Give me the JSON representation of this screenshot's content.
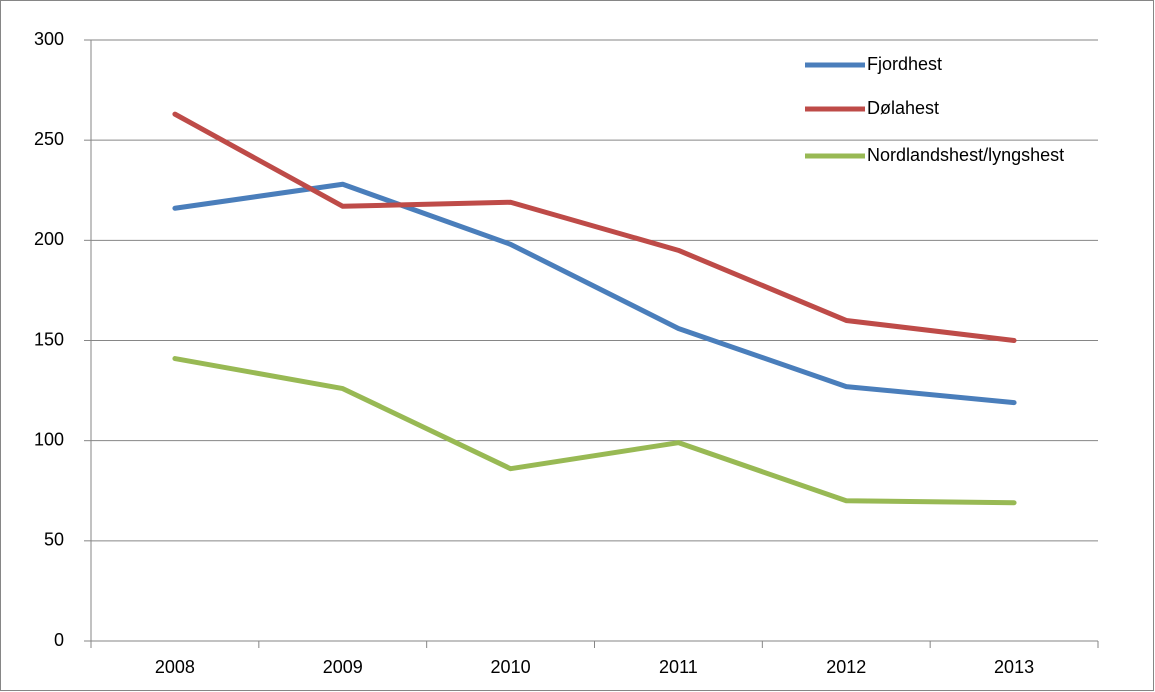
{
  "chart_data": {
    "type": "line",
    "categories": [
      "2008",
      "2009",
      "2010",
      "2011",
      "2012",
      "2013"
    ],
    "series": [
      {
        "name": "Fjordhest",
        "color": "#4a7ebb",
        "values": [
          216,
          228,
          198,
          156,
          127,
          119
        ]
      },
      {
        "name": "Dølahest",
        "color": "#be4b48",
        "values": [
          263,
          217,
          219,
          195,
          160,
          150
        ]
      },
      {
        "name": "Nordlandshest/lyngshest",
        "color": "#98b954",
        "values": [
          141,
          126,
          86,
          99,
          70,
          69
        ]
      }
    ],
    "ylim": [
      0,
      300
    ],
    "yticks": [
      0,
      50,
      100,
      150,
      200,
      250,
      300
    ],
    "grid": true,
    "legend": "top-right"
  }
}
